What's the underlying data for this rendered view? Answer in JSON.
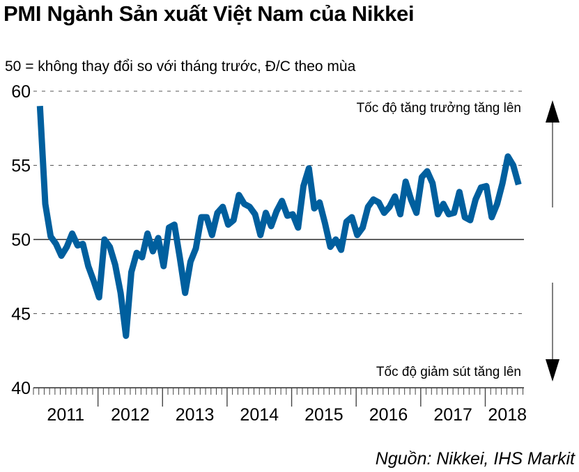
{
  "title": "PMI Ngành Sản xuất Việt Nam của Nikkei",
  "subtitle": "50 = không thay đổi so với tháng trước, Đ/C theo mùa",
  "source": "Nguồn: Nikkei, IHS Markit",
  "annotations": {
    "up": "Tốc độ tăng trưởng tăng lên",
    "down": "Tốc độ giảm sút tăng lên"
  },
  "colors": {
    "line": "#005f9e",
    "grid": "#555555",
    "axis": "#000000"
  },
  "chart_data": {
    "type": "line",
    "title": "PMI Ngành Sản xuất Việt Nam của Nikkei",
    "subtitle": "50 = không thay đổi so với tháng trước, Đ/C theo mùa",
    "xlabel": "",
    "ylabel": "",
    "ylim": [
      40,
      60
    ],
    "yticks": [
      40,
      45,
      50,
      55,
      60
    ],
    "xticks": [
      "2011",
      "2012",
      "2013",
      "2014",
      "2015",
      "2016",
      "2017",
      "2018"
    ],
    "grid": "horizontal dashed at 45, 55, 60; solid reference line at 50",
    "legend": null,
    "start_month_index": 2,
    "frequency": "monthly",
    "series": [
      {
        "name": "PMI",
        "values": [
          59.0,
          52.4,
          50.2,
          49.7,
          48.9,
          49.5,
          50.4,
          49.6,
          49.7,
          48.2,
          47.2,
          46.1,
          50.0,
          49.5,
          48.3,
          46.4,
          43.5,
          47.8,
          49.1,
          48.8,
          50.4,
          49.2,
          50.1,
          48.2,
          50.8,
          51.0,
          48.8,
          46.4,
          48.5,
          49.4,
          51.5,
          51.5,
          50.3,
          51.8,
          52.2,
          51.0,
          51.3,
          53.0,
          52.4,
          52.2,
          51.7,
          50.3,
          51.8,
          50.9,
          51.9,
          52.6,
          51.6,
          51.7,
          50.8,
          53.6,
          54.8,
          52.1,
          52.5,
          51.1,
          49.5,
          50.0,
          49.3,
          51.2,
          51.5,
          50.3,
          50.8,
          52.2,
          52.7,
          52.5,
          51.8,
          52.2,
          52.9,
          51.7,
          53.9,
          52.7,
          51.8,
          54.2,
          54.6,
          53.8,
          51.7,
          52.4,
          51.7,
          51.8,
          53.2,
          51.5,
          51.3,
          52.7,
          53.5,
          53.6,
          51.5,
          52.4,
          53.8,
          55.6,
          55.0,
          53.7
        ]
      }
    ]
  }
}
